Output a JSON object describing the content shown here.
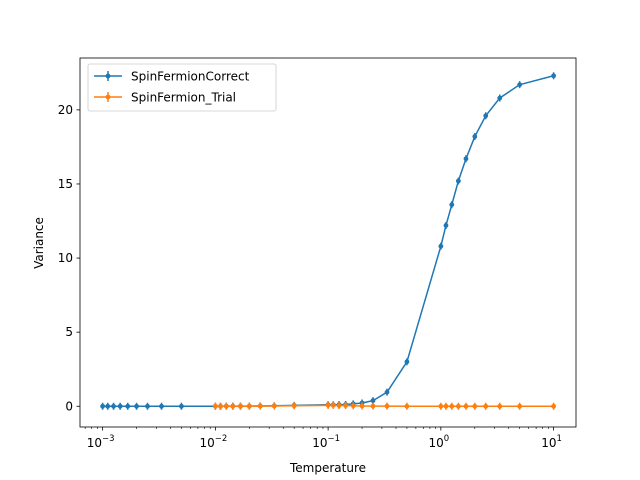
{
  "chart_data": {
    "type": "line",
    "xlabel": "Temperature",
    "ylabel": "Variance",
    "xscale": "log",
    "xlim": [
      0.00063,
      15.8
    ],
    "ylim": [
      -1.4,
      23.5
    ],
    "x_ticks": [
      {
        "value": 0.001,
        "base": "10",
        "exp": "−3"
      },
      {
        "value": 0.01,
        "base": "10",
        "exp": "−2"
      },
      {
        "value": 0.1,
        "base": "10",
        "exp": "−1"
      },
      {
        "value": 1,
        "base": "10",
        "exp": "0"
      },
      {
        "value": 10,
        "base": "10",
        "exp": "1"
      }
    ],
    "y_ticks": [
      0,
      5,
      10,
      15,
      20
    ],
    "grid": false,
    "legend_position": "upper-left",
    "series": [
      {
        "name": "SpinFermionCorrect",
        "color": "#1f77b4",
        "x": [
          0.001,
          0.00111,
          0.00125,
          0.00143,
          0.00167,
          0.002,
          0.0025,
          0.00333,
          0.005,
          0.01,
          0.0111,
          0.0125,
          0.0143,
          0.0167,
          0.02,
          0.025,
          0.0333,
          0.05,
          0.1,
          0.111,
          0.125,
          0.143,
          0.167,
          0.2,
          0.25,
          0.333,
          0.5,
          1.0,
          1.11,
          1.25,
          1.43,
          1.67,
          2.0,
          2.5,
          3.33,
          5.0,
          10.0
        ],
        "y": [
          0.0,
          0.0,
          0.0,
          0.0,
          0.0,
          0.0,
          0.0,
          0.0,
          0.0,
          0.0,
          0.0,
          0.01,
          0.01,
          0.01,
          0.01,
          0.02,
          0.03,
          0.06,
          0.1,
          0.1,
          0.11,
          0.12,
          0.16,
          0.22,
          0.38,
          0.95,
          3.0,
          10.8,
          12.2,
          13.6,
          15.2,
          16.7,
          18.2,
          19.6,
          20.8,
          21.7,
          22.3
        ]
      },
      {
        "name": "SpinFermion_Trial",
        "color": "#ff7f0e",
        "x": [
          0.01,
          0.0111,
          0.0125,
          0.0143,
          0.0167,
          0.02,
          0.025,
          0.0333,
          0.05,
          0.1,
          0.111,
          0.125,
          0.143,
          0.167,
          0.2,
          0.25,
          0.333,
          0.5,
          1.0,
          1.11,
          1.25,
          1.43,
          1.67,
          2.0,
          2.5,
          3.33,
          5.0,
          10.0
        ],
        "y": [
          0.0,
          0.0,
          0.0,
          0.0,
          0.0,
          0.0,
          0.01,
          0.02,
          0.03,
          0.06,
          0.06,
          0.05,
          0.05,
          0.03,
          0.02,
          0.01,
          0.01,
          0.0,
          0.0,
          0.0,
          0.0,
          0.0,
          0.0,
          0.0,
          0.0,
          0.0,
          0.0,
          0.0
        ]
      }
    ]
  }
}
